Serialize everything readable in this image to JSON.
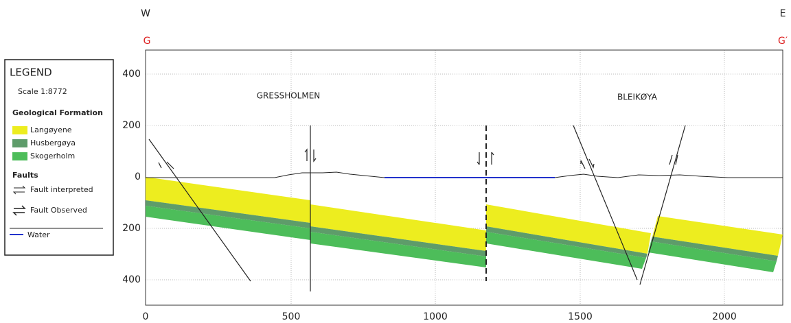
{
  "direction": {
    "west": "W",
    "east": "E"
  },
  "section": {
    "start": "G",
    "end": "G′"
  },
  "x_axis_labels": [
    "0",
    "500",
    "1000",
    "1500",
    "2000"
  ],
  "y_axis_labels": [
    "400",
    "200",
    "0",
    "200",
    "400"
  ],
  "places": [
    "GRESSHOLMEN",
    "BLEIKØYA"
  ],
  "legend": {
    "title": "LEGEND",
    "scale": "Scale 1:8772",
    "formation_heading": "Geological Formation",
    "formations": [
      "Langøyene",
      "Husbergøya",
      "Skogerholm"
    ],
    "faults_heading": "Faults",
    "faults": [
      "Fault interpreted",
      "Fault Observed"
    ],
    "water": "Water"
  }
}
